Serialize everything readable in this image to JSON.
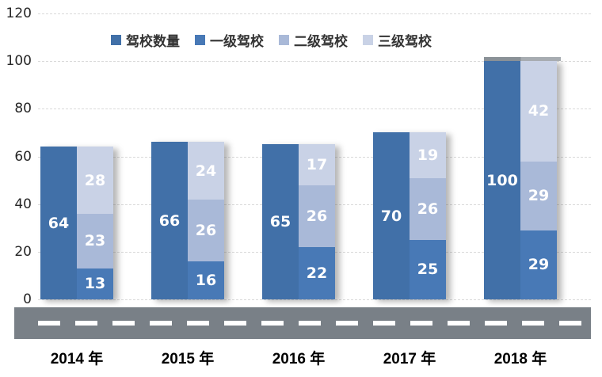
{
  "chart_data": {
    "type": "bar",
    "variant": "grouped-total-plus-stacked",
    "title": "",
    "categories": [
      "2014 年",
      "2015 年",
      "2016 年",
      "2017 年",
      "2018 年"
    ],
    "legend": [
      "驾校数量",
      "一级驾校",
      "二级驾校",
      "三级驾校"
    ],
    "series": [
      {
        "name": "驾校数量",
        "role": "total-bar",
        "color": "#4170a8",
        "values": [
          64,
          66,
          65,
          70,
          100
        ]
      },
      {
        "name": "一级驾校",
        "role": "stack-bottom",
        "color": "#4879b6",
        "values": [
          13,
          16,
          22,
          25,
          29
        ]
      },
      {
        "name": "二级驾校",
        "role": "stack-middle",
        "color": "#a9b9d8",
        "values": [
          23,
          26,
          26,
          26,
          29
        ]
      },
      {
        "name": "三级驾校",
        "role": "stack-top",
        "color": "#c9d2e6",
        "values": [
          28,
          24,
          17,
          19,
          42
        ]
      }
    ],
    "yticks": [
      0,
      20,
      40,
      60,
      80,
      100,
      120
    ],
    "ylim": [
      0,
      120
    ],
    "xlabel": "",
    "ylabel": "",
    "grid": "horizontal-dashed",
    "gridline_color": "#d9d9d9",
    "legend_position": "top",
    "data_label_color": "#ffffff"
  },
  "decorations": {
    "road_color": "#798087",
    "road_dash_color": "#ffffff",
    "cap_category": "2018 年",
    "cap_color": "#9aa0a6"
  }
}
